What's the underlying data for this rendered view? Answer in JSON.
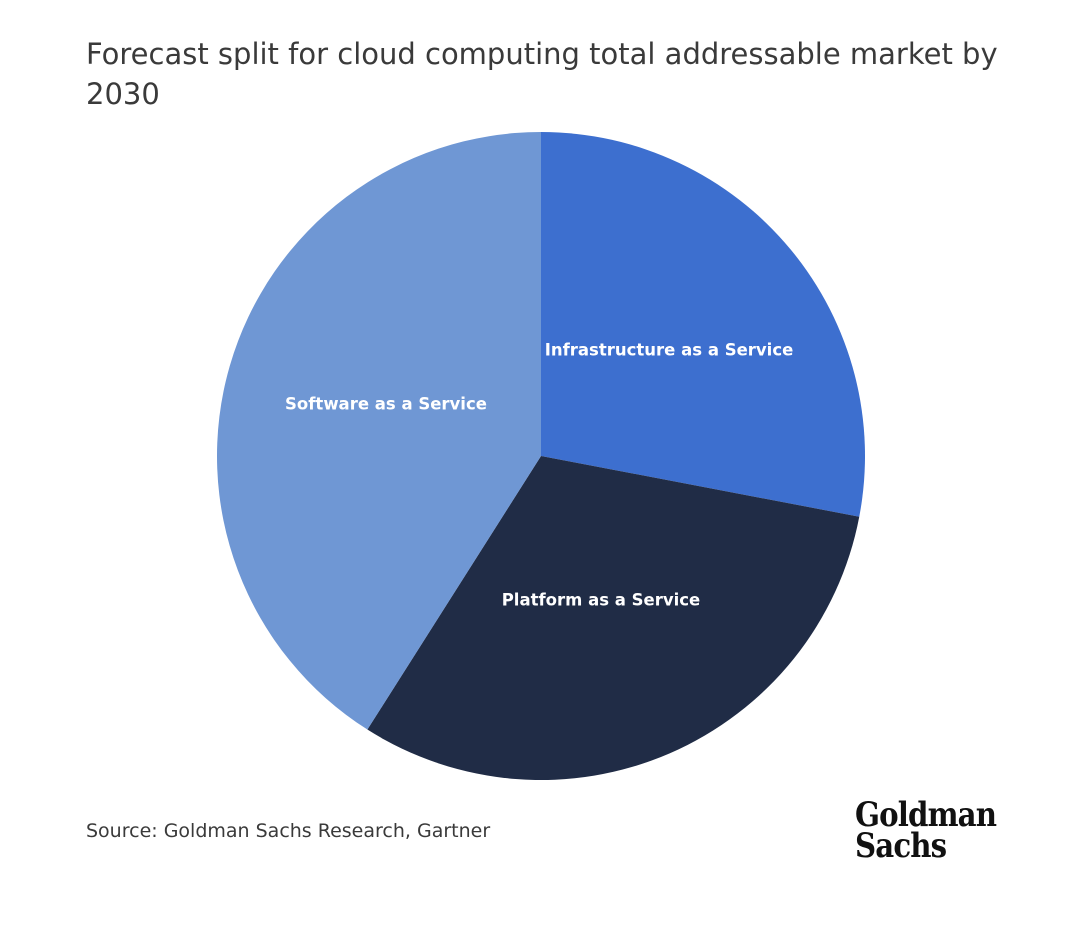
{
  "chart_data": {
    "type": "pie",
    "title": "Forecast split for cloud computing total addressable market by 2030",
    "start_angle_deg": 0,
    "direction": "clockwise",
    "slices": [
      {
        "label": "Infrastructure as a Service",
        "value": 28,
        "color": "#3d6fcf"
      },
      {
        "label": "Platform as a Service",
        "value": 31,
        "color": "#202c46"
      },
      {
        "label": "Software as a Service",
        "value": 41,
        "color": "#6f97d4"
      }
    ]
  },
  "source": "Source: Goldman Sachs Research, Gartner",
  "logo": {
    "line1": "Goldman",
    "line2": "Sachs"
  }
}
